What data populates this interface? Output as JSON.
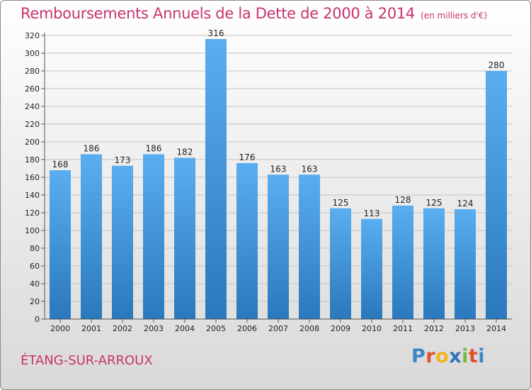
{
  "header": {
    "title": "Remboursements Annuels de la Dette de 2000 à 2014",
    "unit": "(en milliers d'€)"
  },
  "footer": {
    "commune": "ÉTANG-SUR-ARROUX",
    "logo": {
      "p": "P",
      "r": "r",
      "o": "o",
      "x": "x",
      "i1": "i",
      "t": "t",
      "i2": "i"
    }
  },
  "colors": {
    "title": "#c8336e",
    "bar_top": "#5aaef0",
    "bar_bottom": "#2a78bd"
  },
  "chart_data": {
    "type": "bar",
    "categories": [
      "2000",
      "2001",
      "2002",
      "2003",
      "2004",
      "2005",
      "2006",
      "2007",
      "2008",
      "2009",
      "2010",
      "2011",
      "2012",
      "2013",
      "2014"
    ],
    "values": [
      168,
      186,
      173,
      186,
      182,
      316,
      176,
      163,
      163,
      125,
      113,
      128,
      125,
      124,
      280
    ],
    "title": "Remboursements Annuels de la Dette de 2000 à 2014",
    "ylim": [
      0,
      320
    ],
    "yticks": [
      0,
      20,
      40,
      60,
      80,
      100,
      120,
      140,
      160,
      180,
      200,
      220,
      240,
      260,
      280,
      300,
      320
    ],
    "grid": true,
    "legend": "none"
  }
}
